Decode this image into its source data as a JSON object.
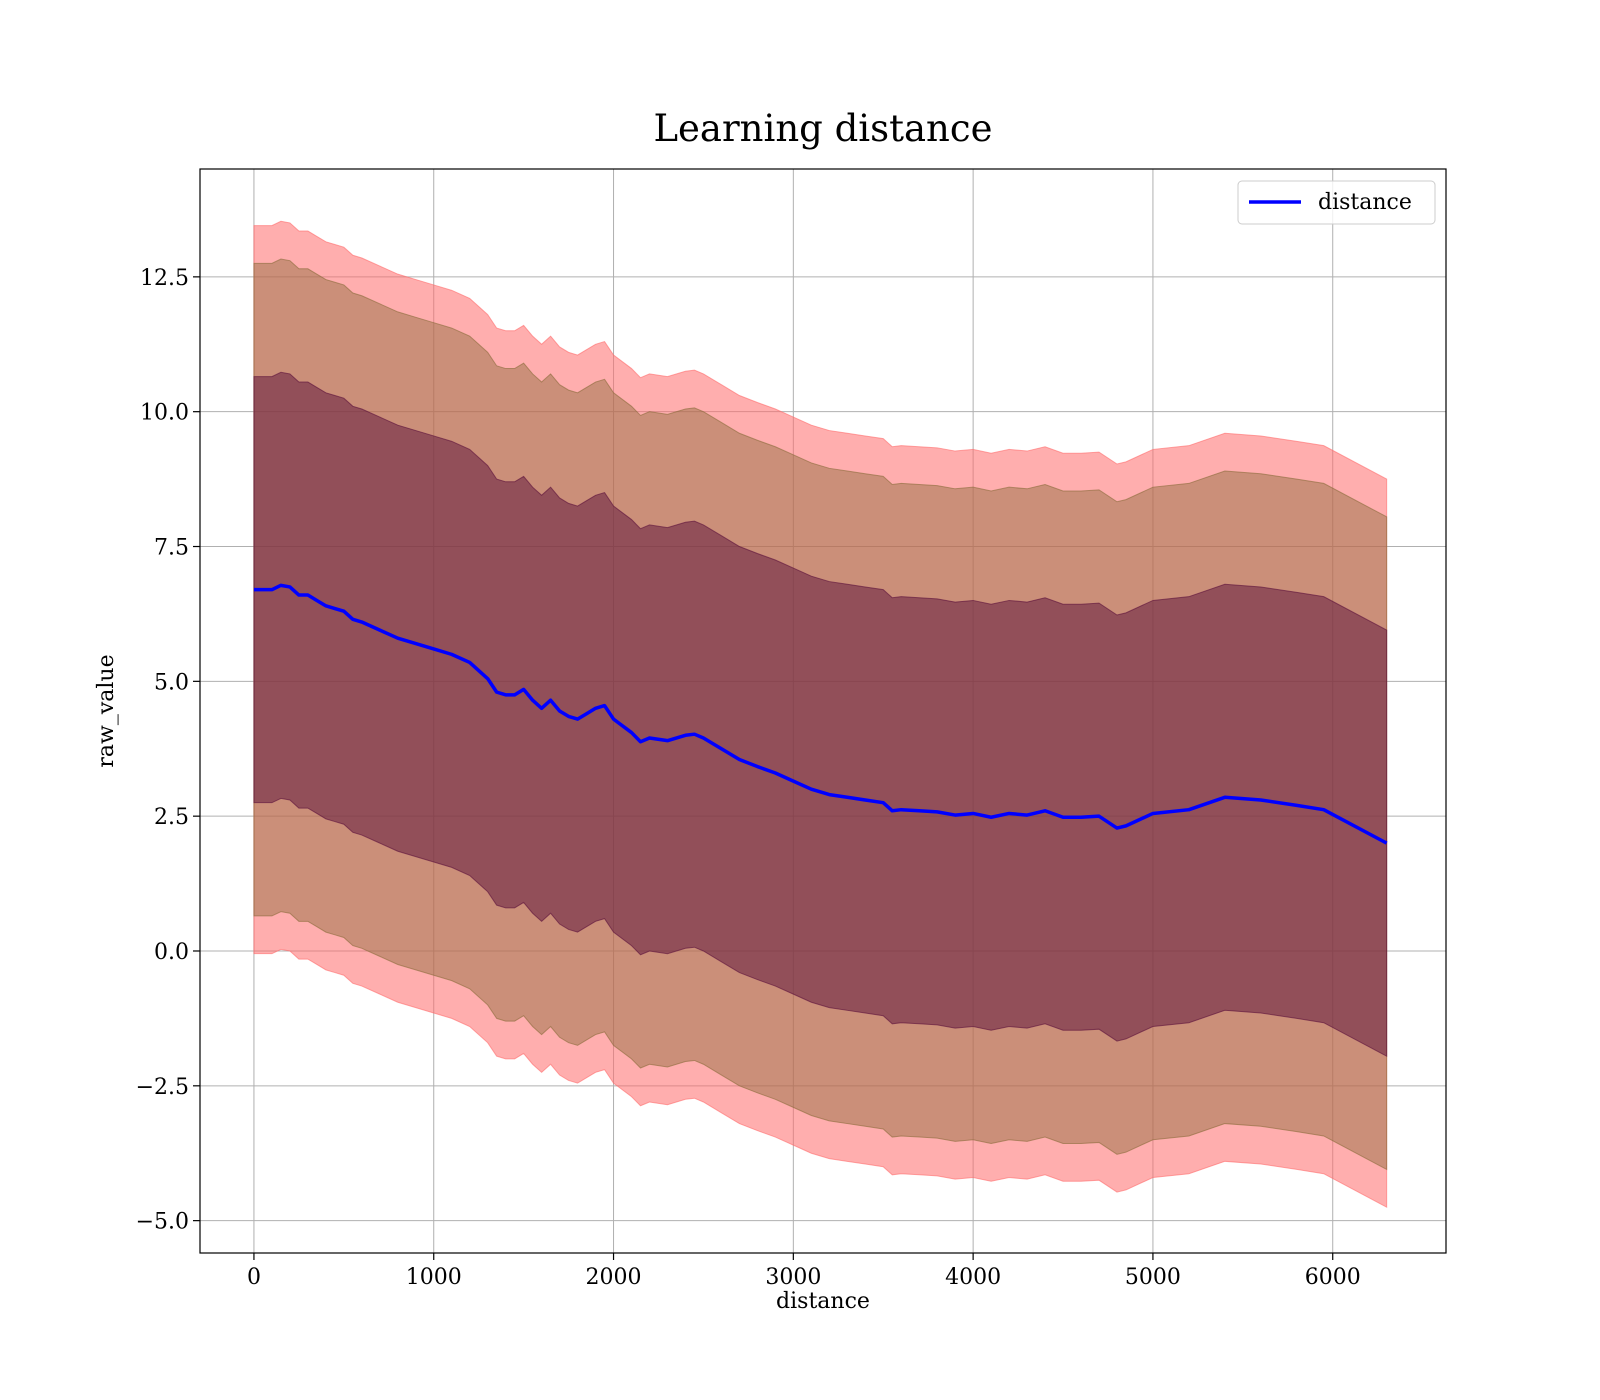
{
  "chart_data": {
    "type": "line",
    "title": "Learning distance",
    "xlabel": "distance",
    "ylabel": "raw_value",
    "xlim": [
      -300,
      6630
    ],
    "ylim": [
      -5.6,
      14.5
    ],
    "xticks": [
      0,
      1000,
      2000,
      3000,
      4000,
      5000,
      6000
    ],
    "xtick_labels": [
      "0",
      "1000",
      "2000",
      "3000",
      "4000",
      "5000",
      "6000"
    ],
    "yticks": [
      -5.0,
      -2.5,
      0.0,
      2.5,
      5.0,
      7.5,
      10.0,
      12.5
    ],
    "ytick_labels": [
      "−5.0",
      "−2.5",
      "0.0",
      "2.5",
      "5.0",
      "7.5",
      "10.0",
      "12.5"
    ],
    "grid": true,
    "legend": {
      "position": "upper right",
      "entries": [
        "distance"
      ]
    },
    "colors": {
      "line": "#0000ff",
      "band_outer": "#ff6b6b",
      "band_middle": "#8b6b3a",
      "band_inner": "#5a0f3a"
    },
    "series": [
      {
        "name": "distance",
        "role": "mean line",
        "x": [
          0,
          50,
          100,
          150,
          200,
          250,
          300,
          350,
          400,
          450,
          500,
          550,
          600,
          700,
          800,
          900,
          1000,
          1100,
          1200,
          1300,
          1350,
          1400,
          1450,
          1500,
          1550,
          1600,
          1650,
          1700,
          1750,
          1800,
          1850,
          1900,
          1950,
          2000,
          2100,
          2150,
          2200,
          2300,
          2400,
          2450,
          2500,
          2600,
          2700,
          2800,
          2900,
          3000,
          3100,
          3200,
          3300,
          3400,
          3500,
          3550,
          3600,
          3700,
          3800,
          3900,
          4000,
          4100,
          4200,
          4300,
          4400,
          4500,
          4600,
          4700,
          4800,
          4850,
          5000,
          5200,
          5400,
          5600,
          5800,
          5950,
          6300
        ],
        "y": [
          6.7,
          6.7,
          6.7,
          6.78,
          6.75,
          6.6,
          6.6,
          6.5,
          6.4,
          6.35,
          6.3,
          6.15,
          6.1,
          5.95,
          5.8,
          5.7,
          5.6,
          5.5,
          5.35,
          5.05,
          4.8,
          4.75,
          4.75,
          4.85,
          4.65,
          4.5,
          4.65,
          4.45,
          4.35,
          4.3,
          4.4,
          4.5,
          4.55,
          4.3,
          4.05,
          3.88,
          3.95,
          3.9,
          4.0,
          4.02,
          3.95,
          3.75,
          3.55,
          3.42,
          3.3,
          3.15,
          3.0,
          2.9,
          2.85,
          2.8,
          2.75,
          2.6,
          2.62,
          2.6,
          2.58,
          2.52,
          2.55,
          2.48,
          2.55,
          2.52,
          2.6,
          2.48,
          2.48,
          2.5,
          2.28,
          2.32,
          2.55,
          2.62,
          2.85,
          2.8,
          2.7,
          2.62,
          2.0
        ]
      }
    ],
    "bands": [
      {
        "role": "outer band (mean ± 3 std)",
        "half_width": 6.75
      },
      {
        "role": "middle band (mean ± 2 std)",
        "half_width": 6.05
      },
      {
        "role": "inner band (mean ± 1 std)",
        "half_width": 3.95
      }
    ]
  }
}
